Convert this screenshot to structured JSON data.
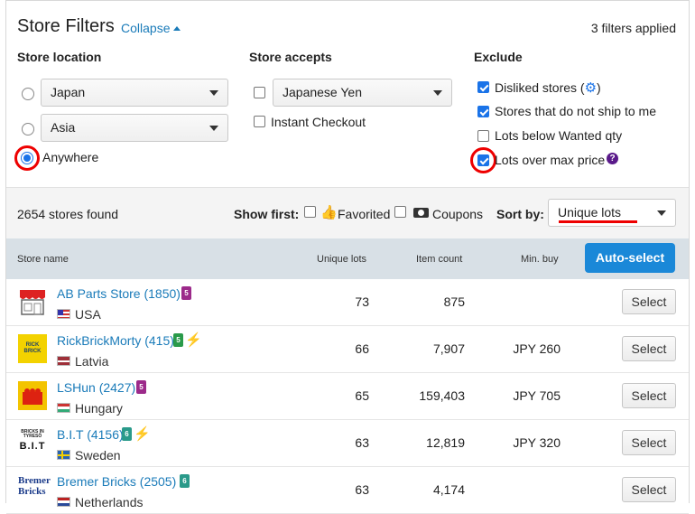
{
  "header": {
    "title": "Store Filters",
    "collapse_label": "Collapse",
    "filters_applied": "3 filters applied"
  },
  "location": {
    "heading": "Store location",
    "options": [
      {
        "value": "Japan",
        "selected": false
      },
      {
        "value": "Asia",
        "selected": false
      },
      {
        "label": "Anywhere",
        "selected": true
      }
    ]
  },
  "accepts": {
    "heading": "Store accepts",
    "currency": {
      "value": "Japanese Yen",
      "checked": false
    },
    "instant_checkout": {
      "label": "Instant Checkout",
      "checked": false
    }
  },
  "exclude": {
    "heading": "Exclude",
    "items": [
      {
        "label": "Disliked stores (",
        "label_end": ")",
        "checked": true
      },
      {
        "label": "Stores that do not ship to me",
        "checked": true
      },
      {
        "label": "Lots below Wanted qty",
        "checked": false
      },
      {
        "label": "Lots over max price",
        "checked": true
      }
    ]
  },
  "results": {
    "count_text": "2654 stores found",
    "show_first_label": "Show first:",
    "favorited_label": "Favorited",
    "coupons_label": "Coupons",
    "sort_label": "Sort by:",
    "sort_value": "Unique lots"
  },
  "table": {
    "columns": [
      "Store name",
      "Unique lots",
      "Item count",
      "Min. buy"
    ],
    "auto_select_label": "Auto-select",
    "select_label": "Select",
    "rows": [
      {
        "name": "AB Parts Store (1850)",
        "country": "USA",
        "unique_lots": "73",
        "item_count": "875",
        "min_buy": "",
        "badge": "5",
        "badge_color": "#9c2a8a",
        "bolt": false
      },
      {
        "name": "RickBrickMorty (415)",
        "country": "Latvia",
        "unique_lots": "66",
        "item_count": "7,907",
        "min_buy": "JPY 260",
        "badge": "5",
        "badge_color": "#2a9a4a",
        "bolt": true
      },
      {
        "name": "LSHun (2427)",
        "country": "Hungary",
        "unique_lots": "65",
        "item_count": "159,403",
        "min_buy": "JPY 705",
        "badge": "5",
        "badge_color": "#9c2a8a",
        "bolt": false
      },
      {
        "name": "B.I.T (4156)",
        "country": "Sweden",
        "unique_lots": "63",
        "item_count": "12,819",
        "min_buy": "JPY 320",
        "badge": "6",
        "badge_color": "#2a9a8a",
        "bolt": true
      },
      {
        "name": "Bremer Bricks (2505)",
        "country": "Netherlands",
        "unique_lots": "63",
        "item_count": "4,174",
        "min_buy": "",
        "badge": "6",
        "badge_color": "#2a9a8a",
        "bolt": false
      }
    ]
  },
  "logos": {
    "row2_text": "RICK BRICK",
    "row4_text": "BRICKS IN TYRESÖ",
    "row4_big": "B.I.T",
    "row5_line1": "Bremer",
    "row5_line2": "Bricks"
  },
  "colors": {
    "link": "#1a7bb9",
    "accent": "#1a88d8",
    "annotation": "#e00000"
  }
}
